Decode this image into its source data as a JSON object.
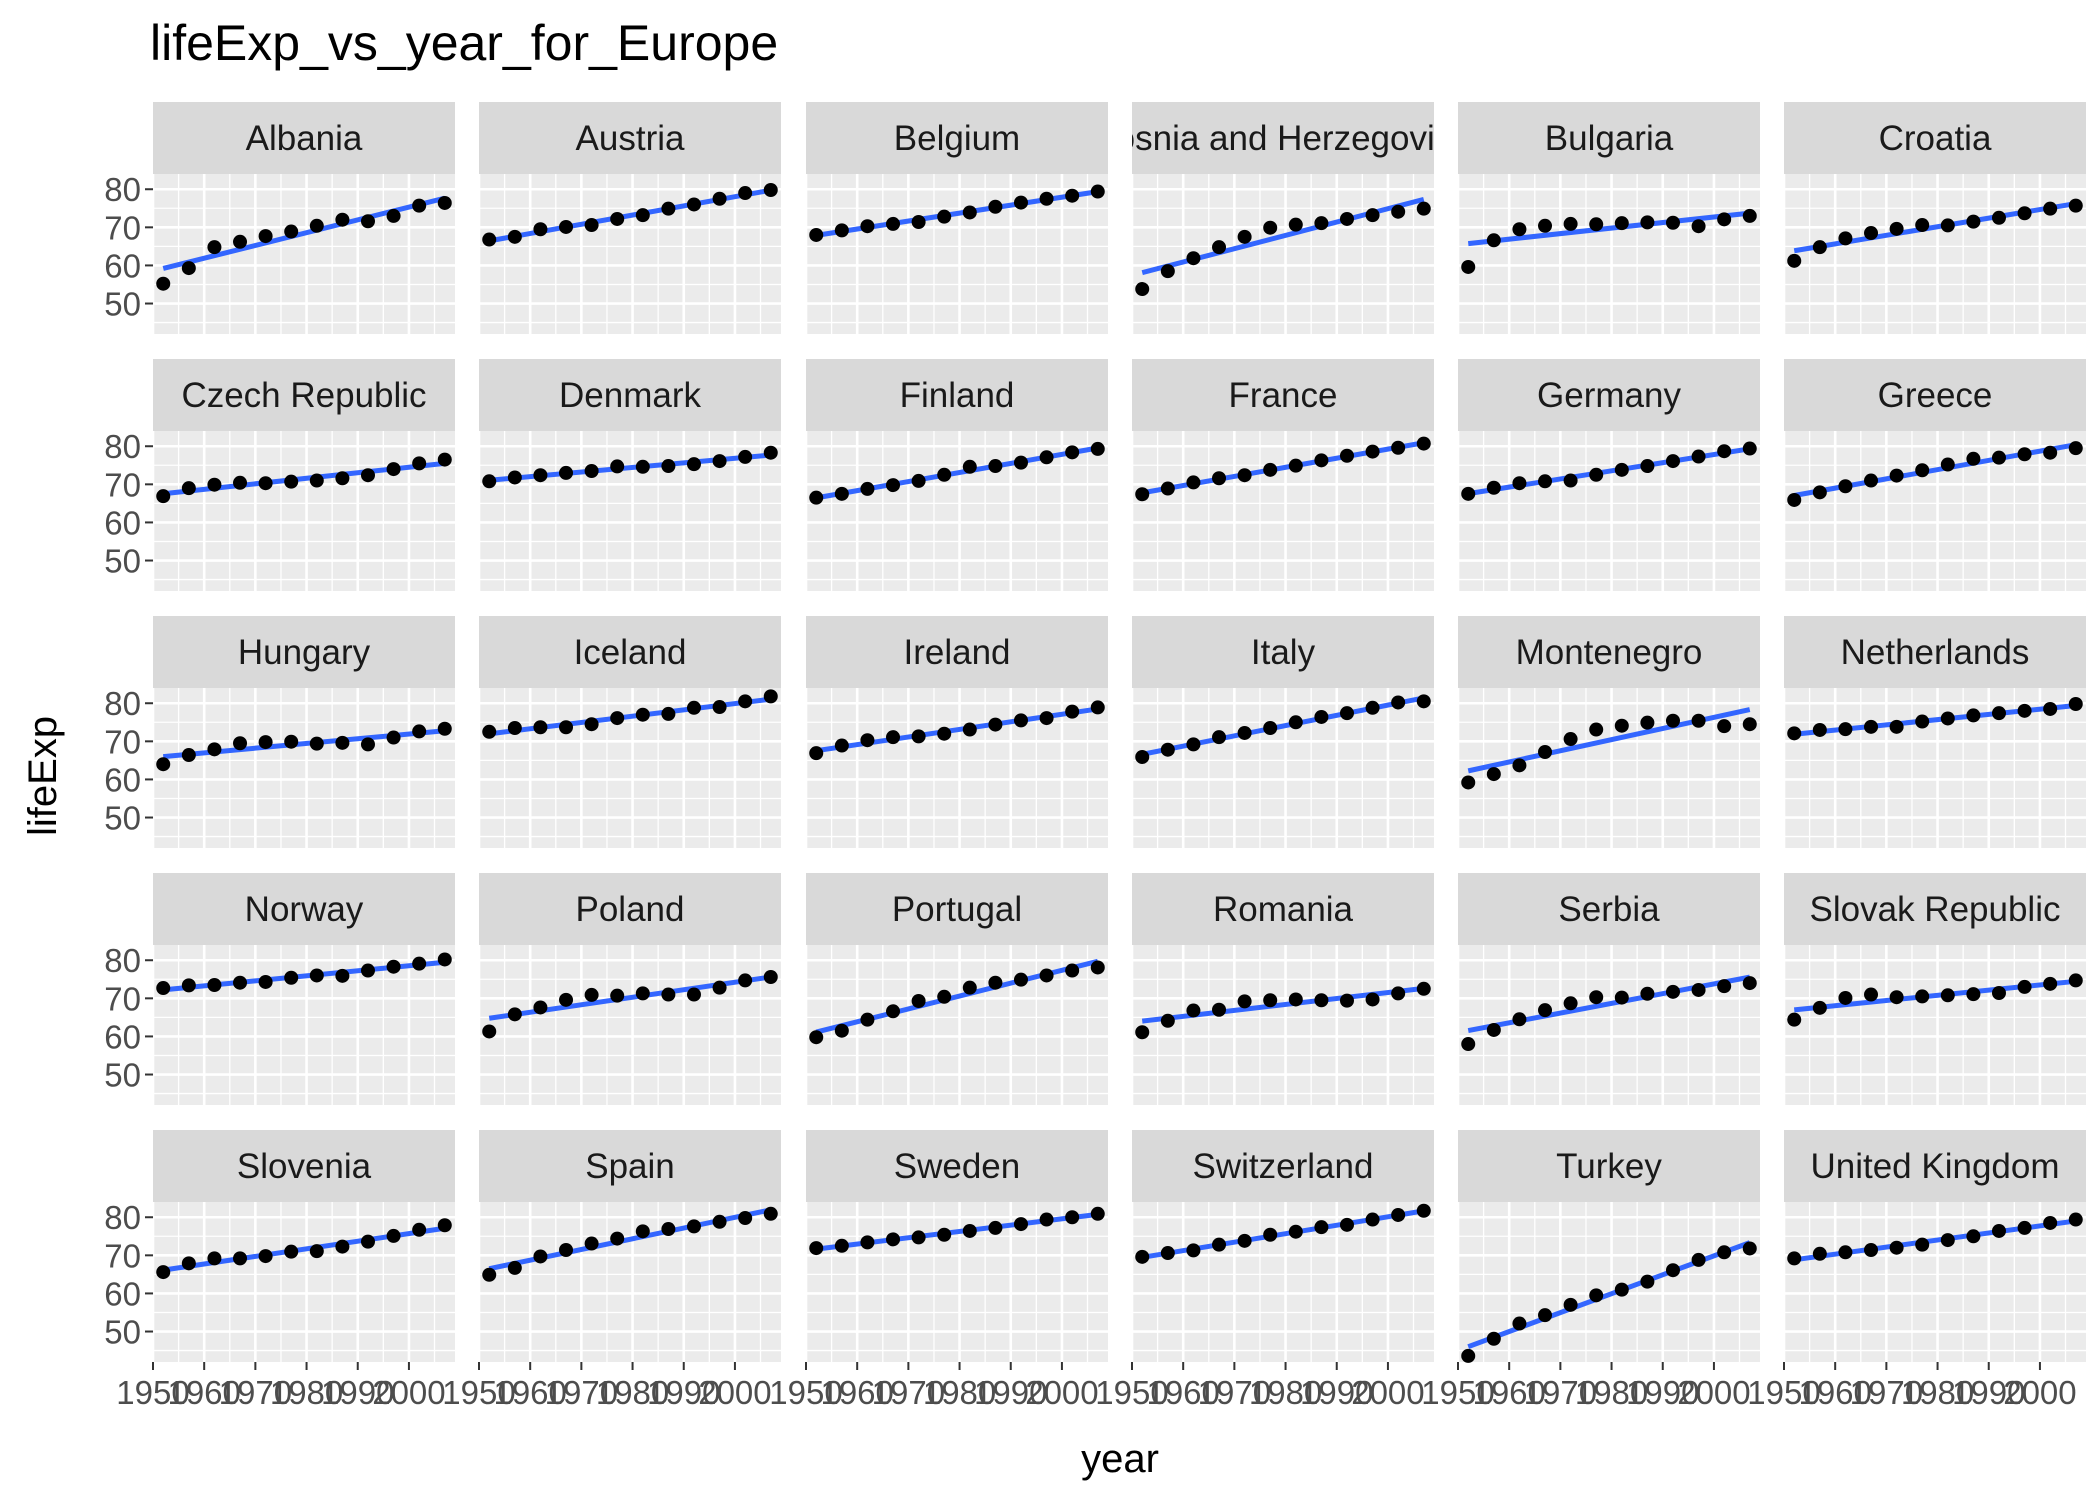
{
  "chart_data": {
    "type": "scatter",
    "title": "lifeExp_vs_year_for_Europe",
    "xlabel": "year",
    "ylabel": "lifeExp",
    "xlim": [
      1950,
      2009
    ],
    "ylim": [
      42,
      84
    ],
    "x_ticks": [
      "1950",
      "1960",
      "1970",
      "1980",
      "1990",
      "2000"
    ],
    "y_ticks": [
      "50",
      "60",
      "70",
      "80"
    ],
    "grid": true,
    "smooth": "linear",
    "colors": {
      "points": "#000000",
      "fit_line": "#3366FF",
      "panel_bg": "#EBEBEB",
      "strip_bg": "#D9D9D9",
      "grid": "#FFFFFF"
    },
    "x": [
      1952,
      1957,
      1962,
      1967,
      1972,
      1977,
      1982,
      1987,
      1992,
      1997,
      2002,
      2007
    ],
    "series": [
      {
        "name": "Albania",
        "values": [
          55.2,
          59.3,
          64.8,
          66.2,
          67.7,
          68.9,
          70.4,
          72.0,
          71.6,
          73.0,
          75.7,
          76.4
        ]
      },
      {
        "name": "Austria",
        "values": [
          66.8,
          67.5,
          69.5,
          70.1,
          70.6,
          72.2,
          73.2,
          74.9,
          76.0,
          77.5,
          79.0,
          79.8
        ]
      },
      {
        "name": "Belgium",
        "values": [
          68.0,
          69.2,
          70.3,
          70.9,
          71.4,
          72.8,
          73.9,
          75.4,
          76.5,
          77.5,
          78.3,
          79.4
        ]
      },
      {
        "name": "Bosnia and Herzegovina",
        "values": [
          53.8,
          58.5,
          61.9,
          64.8,
          67.5,
          69.9,
          70.7,
          71.1,
          72.2,
          73.2,
          74.1,
          74.9
        ]
      },
      {
        "name": "Bulgaria",
        "values": [
          59.6,
          66.6,
          69.5,
          70.4,
          70.9,
          70.8,
          71.1,
          71.3,
          71.2,
          70.3,
          72.1,
          73.0
        ]
      },
      {
        "name": "Croatia",
        "values": [
          61.2,
          64.8,
          67.1,
          68.5,
          69.6,
          70.6,
          70.5,
          71.5,
          72.5,
          73.7,
          74.9,
          75.7
        ]
      },
      {
        "name": "Czech Republic",
        "values": [
          66.9,
          69.0,
          69.9,
          70.4,
          70.3,
          70.7,
          71.0,
          71.6,
          72.4,
          74.0,
          75.5,
          76.5
        ]
      },
      {
        "name": "Denmark",
        "values": [
          70.8,
          71.8,
          72.4,
          73.0,
          73.5,
          74.7,
          74.6,
          74.8,
          75.3,
          76.1,
          77.2,
          78.3
        ]
      },
      {
        "name": "Finland",
        "values": [
          66.5,
          67.5,
          68.8,
          69.8,
          70.9,
          72.5,
          74.6,
          74.8,
          75.7,
          77.1,
          78.4,
          79.3
        ]
      },
      {
        "name": "France",
        "values": [
          67.4,
          68.9,
          70.5,
          71.6,
          72.4,
          73.8,
          74.9,
          76.3,
          77.5,
          78.6,
          79.6,
          80.7
        ]
      },
      {
        "name": "Germany",
        "values": [
          67.5,
          69.1,
          70.3,
          70.8,
          71.0,
          72.5,
          73.8,
          74.8,
          76.1,
          77.3,
          78.7,
          79.4
        ]
      },
      {
        "name": "Greece",
        "values": [
          65.9,
          67.9,
          69.5,
          71.0,
          72.3,
          73.7,
          75.2,
          76.7,
          77.0,
          77.9,
          78.3,
          79.5
        ]
      },
      {
        "name": "Hungary",
        "values": [
          64.0,
          66.4,
          67.9,
          69.5,
          69.8,
          69.9,
          69.4,
          69.6,
          69.2,
          71.0,
          72.6,
          73.3
        ]
      },
      {
        "name": "Iceland",
        "values": [
          72.5,
          73.5,
          73.7,
          73.7,
          74.5,
          76.1,
          76.99,
          77.2,
          78.8,
          79.0,
          80.5,
          81.8
        ]
      },
      {
        "name": "Ireland",
        "values": [
          66.9,
          68.9,
          70.3,
          71.1,
          71.3,
          72.0,
          73.1,
          74.4,
          75.5,
          76.1,
          77.8,
          78.9
        ]
      },
      {
        "name": "Italy",
        "values": [
          65.9,
          67.8,
          69.2,
          71.1,
          72.2,
          73.5,
          75.0,
          76.4,
          77.4,
          78.8,
          80.2,
          80.5
        ]
      },
      {
        "name": "Montenegro",
        "values": [
          59.2,
          61.4,
          63.7,
          67.2,
          70.6,
          73.1,
          74.1,
          74.9,
          75.4,
          75.4,
          73.98,
          74.5
        ]
      },
      {
        "name": "Netherlands",
        "values": [
          72.1,
          72.99,
          73.2,
          73.8,
          73.8,
          75.2,
          76.0,
          76.8,
          77.4,
          78.0,
          78.5,
          79.8
        ]
      },
      {
        "name": "Norway",
        "values": [
          72.7,
          73.4,
          73.5,
          74.1,
          74.3,
          75.4,
          76.0,
          75.9,
          77.3,
          78.3,
          79.1,
          80.2
        ]
      },
      {
        "name": "Poland",
        "values": [
          61.3,
          65.8,
          67.6,
          69.6,
          70.9,
          70.7,
          71.3,
          71.0,
          71.0,
          72.8,
          74.7,
          75.6
        ]
      },
      {
        "name": "Portugal",
        "values": [
          59.8,
          61.5,
          64.4,
          66.6,
          69.3,
          70.4,
          72.8,
          74.1,
          74.9,
          76.0,
          77.3,
          78.1
        ]
      },
      {
        "name": "Romania",
        "values": [
          61.1,
          64.1,
          66.8,
          67.0,
          69.2,
          69.5,
          69.7,
          69.5,
          69.4,
          69.7,
          71.3,
          72.5
        ]
      },
      {
        "name": "Serbia",
        "values": [
          58.0,
          61.7,
          64.5,
          66.9,
          68.7,
          70.3,
          70.2,
          71.2,
          71.7,
          72.2,
          73.2,
          74.0
        ]
      },
      {
        "name": "Slovak Republic",
        "values": [
          64.4,
          67.5,
          70.1,
          71.0,
          70.3,
          70.5,
          70.8,
          71.1,
          71.4,
          73.0,
          73.8,
          74.7
        ]
      },
      {
        "name": "Slovenia",
        "values": [
          65.6,
          67.9,
          69.2,
          69.2,
          69.8,
          70.97,
          71.1,
          72.3,
          73.6,
          75.1,
          76.7,
          77.9
        ]
      },
      {
        "name": "Spain",
        "values": [
          64.9,
          66.7,
          69.7,
          71.4,
          73.1,
          74.4,
          76.3,
          76.9,
          77.6,
          78.8,
          79.8,
          80.9
        ]
      },
      {
        "name": "Sweden",
        "values": [
          71.9,
          72.5,
          73.4,
          74.2,
          74.7,
          75.4,
          76.4,
          77.2,
          78.2,
          79.4,
          80.0,
          80.9
        ]
      },
      {
        "name": "Switzerland",
        "values": [
          69.6,
          70.6,
          71.3,
          72.8,
          73.8,
          75.4,
          76.2,
          77.4,
          78.0,
          79.4,
          80.6,
          81.7
        ]
      },
      {
        "name": "Turkey",
        "values": [
          43.6,
          48.1,
          52.1,
          54.3,
          57.0,
          59.5,
          61.0,
          63.1,
          66.1,
          68.8,
          70.8,
          71.8
        ]
      },
      {
        "name": "United Kingdom",
        "values": [
          69.2,
          70.4,
          70.8,
          71.4,
          72.0,
          72.8,
          74.0,
          75.0,
          76.4,
          77.2,
          78.5,
          79.4
        ]
      }
    ]
  }
}
